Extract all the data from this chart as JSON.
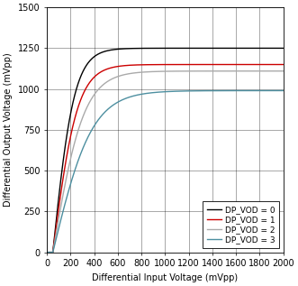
{
  "xlabel": "Differential Input Voltage (mVpp)",
  "ylabel": "Differential Output Voltage (mVpp)",
  "xlim": [
    0,
    2000
  ],
  "ylim": [
    0,
    1500
  ],
  "xticks": [
    0,
    200,
    400,
    600,
    800,
    1000,
    1200,
    1400,
    1600,
    1800,
    2000
  ],
  "yticks": [
    0,
    250,
    500,
    750,
    1000,
    1250,
    1500
  ],
  "series": [
    {
      "label": "DP_VOD = 0",
      "color": "#000000",
      "vmax": 1250,
      "x0": 50,
      "k": 0.0055
    },
    {
      "label": "DP_VOD = 1",
      "color": "#cc0000",
      "vmax": 1150,
      "x0": 50,
      "k": 0.0048
    },
    {
      "label": "DP_VOD = 2",
      "color": "#aaaaaa",
      "vmax": 1110,
      "x0": 50,
      "k": 0.0038
    },
    {
      "label": "DP_VOD = 3",
      "color": "#4d8fa0",
      "vmax": 990,
      "x0": 50,
      "k": 0.003
    }
  ],
  "legend_loc": "lower right",
  "background_color": "#ffffff",
  "font_size": 7,
  "title_font_size": 7,
  "legend_font_size": 6.5
}
